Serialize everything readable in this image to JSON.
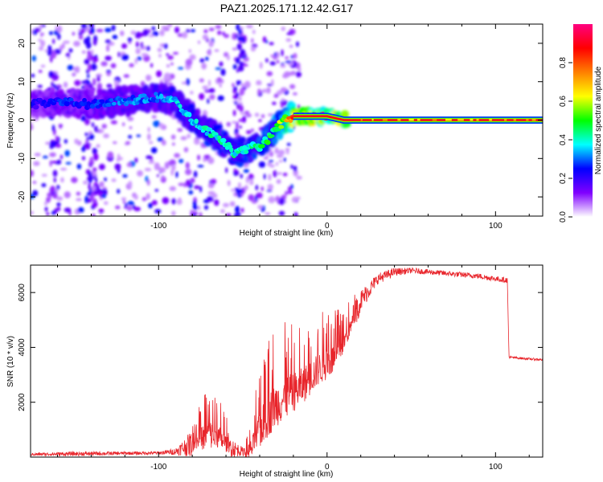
{
  "title": "PAZ1.2025.171.12.42.G17",
  "chart_data": [
    {
      "type": "heatmap",
      "xlabel": "Height of straight line (km)",
      "ylabel": "Frequency (Hz)",
      "xlim": [
        -176,
        128
      ],
      "ylim": [
        -25,
        25
      ],
      "x_ticks": [
        -100,
        0,
        100
      ],
      "y_ticks": [
        -20,
        -10,
        0,
        10,
        20
      ],
      "colorbar": {
        "label": "Normalized spectral amplitude",
        "range": [
          0,
          1
        ],
        "ticks": [
          0.0,
          0.2,
          0.4,
          0.6,
          0.8
        ],
        "tick_labels": [
          "0.0",
          "0.2",
          "0.4",
          "0.6",
          "0.8"
        ],
        "colors": [
          "#ffffff",
          "#8000ff",
          "#0000ff",
          "#00ffff",
          "#00ff00",
          "#ffff00",
          "#ff8000",
          "#ff0000",
          "#ff0080"
        ]
      },
      "ridge": {
        "x": [
          -176,
          -160,
          -140,
          -120,
          -100,
          -90,
          -80,
          -70,
          -60,
          -55,
          -50,
          -45,
          -40,
          -35,
          -30,
          -25,
          -20,
          -15,
          -10,
          -5,
          0,
          5,
          10,
          20,
          40,
          60,
          80,
          100,
          128
        ],
        "y": [
          4,
          5,
          4,
          5,
          6,
          5,
          0,
          -3,
          -6,
          -9,
          -8,
          -7,
          -7,
          -5,
          -2,
          0,
          1,
          1,
          1,
          1,
          1,
          0.5,
          0,
          0,
          0,
          0,
          0,
          0,
          0
        ],
        "amplitude": [
          0.2,
          0.25,
          0.25,
          0.3,
          0.3,
          0.35,
          0.35,
          0.4,
          0.4,
          0.4,
          0.4,
          0.4,
          0.45,
          0.45,
          0.5,
          0.6,
          0.95,
          0.95,
          0.95,
          0.9,
          0.9,
          0.95,
          0.95,
          0.95,
          0.95,
          0.95,
          0.95,
          0.95,
          0.95
        ]
      }
    },
    {
      "type": "line",
      "xlabel": "Height of straight line (km)",
      "ylabel": "SNR (10 * v/v)",
      "xlim": [
        -176,
        128
      ],
      "ylim": [
        0,
        7000
      ],
      "x_ticks": [
        -100,
        0,
        100
      ],
      "y_ticks": [
        2000,
        4000,
        6000
      ],
      "series": [
        {
          "color": "#e8252b",
          "envelope_x": [
            -176,
            -150,
            -120,
            -100,
            -90,
            -80,
            -75,
            -70,
            -65,
            -60,
            -55,
            -50,
            -45,
            -40,
            -35,
            -30,
            -25,
            -20,
            -15,
            -10,
            -5,
            0,
            5,
            10,
            15,
            20,
            30,
            40,
            50,
            60,
            70,
            80,
            90,
            100,
            107,
            108,
            110,
            120,
            128
          ],
          "envelope_mean": [
            100,
            120,
            140,
            150,
            200,
            500,
            800,
            1000,
            900,
            600,
            300,
            200,
            400,
            1200,
            1800,
            2200,
            2400,
            2600,
            2800,
            3100,
            3400,
            3600,
            3800,
            4300,
            5000,
            5700,
            6500,
            6750,
            6800,
            6750,
            6700,
            6650,
            6600,
            6500,
            6450,
            3650,
            3630,
            3580,
            3550
          ],
          "envelope_amp": [
            50,
            80,
            60,
            60,
            120,
            500,
            900,
            1200,
            1000,
            700,
            300,
            150,
            800,
            1500,
            1800,
            1800,
            1800,
            1600,
            1500,
            1400,
            1300,
            1300,
            1200,
            800,
            600,
            400,
            200,
            150,
            100,
            100,
            100,
            100,
            100,
            100,
            100,
            40,
            40,
            40,
            40
          ]
        }
      ]
    }
  ]
}
